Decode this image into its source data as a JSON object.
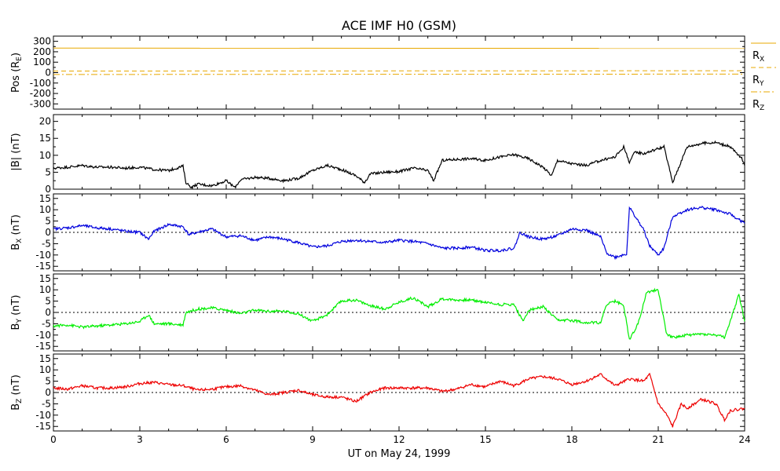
{
  "title": "ACE IMF H0 (GSM)",
  "xlabel": "UT on May 24, 1999",
  "x_ticks": [
    0,
    3,
    6,
    9,
    12,
    15,
    18,
    21,
    24
  ],
  "colors": {
    "pos": "#e8a800",
    "bmag": "#000000",
    "bx": "#0000dd",
    "by": "#00ee00",
    "bz": "#ee0000"
  },
  "chart_data": [
    {
      "type": "line",
      "panel": "pos",
      "ylabel": "Pos (R",
      "ylabel_sub": "E",
      "ylabel_end": ")",
      "ylim": [
        -350,
        350
      ],
      "y_ticks": [
        300,
        200,
        100,
        0,
        -100,
        -200,
        -300
      ],
      "grid": false,
      "legend_placement": "right",
      "series": [
        {
          "name": "R",
          "sub": "X",
          "dash": "solid",
          "x": [
            0,
            24
          ],
          "values": [
            235,
            232
          ]
        },
        {
          "name": "R",
          "sub": "Y",
          "dash": "dashed",
          "x": [
            0,
            24
          ],
          "values": [
            15,
            18
          ]
        },
        {
          "name": "R",
          "sub": "Z",
          "dash": "dashdot",
          "x": [
            0,
            24
          ],
          "values": [
            -18,
            -14
          ]
        }
      ]
    },
    {
      "type": "line",
      "panel": "bmag",
      "ylabel": "|B| (nT)",
      "ylim": [
        0,
        22
      ],
      "y_ticks": [
        20,
        15,
        10,
        5,
        0
      ],
      "zero_line": false,
      "x": [
        0,
        0.5,
        1,
        1.5,
        2,
        2.5,
        3,
        3.5,
        4,
        4.5,
        4.6,
        4.8,
        5,
        5.5,
        6,
        6.3,
        6.5,
        7,
        7.5,
        8,
        8.5,
        9,
        9.5,
        10,
        10.5,
        10.8,
        11,
        11.5,
        12,
        12.5,
        13,
        13.2,
        13.5,
        14,
        14.5,
        15,
        15.5,
        16,
        16.5,
        17,
        17.3,
        17.5,
        18,
        18.5,
        19,
        19.5,
        19.8,
        20,
        20.2,
        20.5,
        21,
        21.2,
        21.5,
        22,
        22.5,
        23,
        23.5,
        23.9,
        24
      ],
      "values": [
        6.2,
        6.5,
        7,
        6.5,
        6.5,
        6.2,
        6.5,
        5.8,
        5.5,
        6.8,
        2,
        0.5,
        1.5,
        1,
        2.5,
        0.5,
        2.8,
        3.5,
        3.2,
        2.5,
        3.2,
        5.5,
        7,
        5.8,
        4,
        2,
        4.5,
        5,
        5.2,
        6.2,
        5.5,
        2.5,
        8.5,
        8.8,
        9,
        8.5,
        9.5,
        10.2,
        9,
        6.5,
        4,
        8.5,
        7.5,
        7,
        8.5,
        9.5,
        12.5,
        8,
        11,
        10.5,
        12,
        12.5,
        2,
        12.5,
        13.5,
        13.8,
        12.5,
        9,
        7
      ]
    },
    {
      "type": "line",
      "panel": "bx",
      "ylabel": "B",
      "ylabel_sub": "X",
      "ylabel_end": " (nT)",
      "ylim": [
        -17,
        17
      ],
      "y_ticks": [
        15,
        10,
        5,
        0,
        -5,
        -10,
        -15
      ],
      "zero_line": true,
      "x": [
        0,
        0.5,
        1,
        1.5,
        2,
        2.5,
        3,
        3.3,
        3.5,
        4,
        4.5,
        4.7,
        5,
        5.5,
        6,
        6.5,
        7,
        7.5,
        8,
        8.5,
        9,
        9.5,
        10,
        10.5,
        11,
        11.5,
        12,
        12.5,
        13,
        13.5,
        14,
        14.5,
        15,
        15.5,
        16,
        16.2,
        16.5,
        17,
        17.5,
        18,
        18.5,
        19,
        19.2,
        19.5,
        19.9,
        20,
        20.5,
        20.7,
        21,
        21.2,
        21.5,
        22,
        22.5,
        23,
        23.5,
        24
      ],
      "values": [
        1.5,
        2,
        3,
        2,
        1.5,
        0.5,
        0,
        -3,
        0.5,
        3.5,
        2.5,
        -1,
        0,
        1.5,
        -2,
        -1.5,
        -3.5,
        -2,
        -3,
        -4.5,
        -6.5,
        -6,
        -4,
        -3.5,
        -4,
        -4.5,
        -3.5,
        -4,
        -5,
        -7,
        -7,
        -6.5,
        -8,
        -8,
        -7,
        0,
        -2,
        -3,
        -1.5,
        1.5,
        1,
        -2,
        -9,
        -11,
        -9.5,
        11,
        1,
        -6,
        -10,
        -7,
        7,
        10,
        11,
        10,
        8,
        4
      ]
    },
    {
      "type": "line",
      "panel": "by",
      "ylabel": "B",
      "ylabel_sub": "Y",
      "ylabel_end": " (nT)",
      "ylim": [
        -17,
        17
      ],
      "y_ticks": [
        15,
        10,
        5,
        0,
        -5,
        -10,
        -15
      ],
      "zero_line": true,
      "x": [
        0,
        0.5,
        1,
        1.5,
        2,
        2.5,
        3,
        3.3,
        3.5,
        4,
        4.5,
        4.6,
        5,
        5.5,
        6,
        6.5,
        7,
        7.5,
        8,
        8.5,
        9,
        9.5,
        10,
        10.5,
        11,
        11.5,
        12,
        12.5,
        13,
        13.5,
        14,
        14.5,
        15,
        15.5,
        16,
        16.3,
        16.5,
        17,
        17.5,
        18,
        18.5,
        19,
        19.2,
        19.5,
        19.8,
        20,
        20.3,
        20.6,
        21,
        21.3,
        21.6,
        22,
        22.5,
        23,
        23.3,
        23.5,
        23.8,
        24
      ],
      "values": [
        -6,
        -5.5,
        -6.5,
        -6,
        -5.5,
        -5,
        -4,
        -1,
        -5,
        -5,
        -5.5,
        0,
        1.5,
        2,
        1,
        -0.5,
        1,
        0.5,
        0.5,
        -0.5,
        -4,
        -1,
        5,
        5.5,
        3,
        1.5,
        4.5,
        6.5,
        2.5,
        6,
        5.5,
        5.5,
        4.5,
        3.5,
        3.5,
        -4,
        1,
        2.5,
        -3.5,
        -3.5,
        -4.5,
        -4.5,
        3.5,
        5,
        3,
        -12,
        -5,
        9,
        10,
        -10,
        -11,
        -10,
        -9.5,
        -10,
        -11,
        -4,
        8,
        -4
      ]
    },
    {
      "type": "line",
      "panel": "bz",
      "ylabel": "B",
      "ylabel_sub": "Z",
      "ylabel_end": " (nT)",
      "ylim": [
        -17,
        17
      ],
      "y_ticks": [
        15,
        10,
        5,
        0,
        -5,
        -10,
        -15
      ],
      "zero_line": true,
      "x": [
        0,
        0.5,
        1,
        1.5,
        2,
        2.5,
        3,
        3.5,
        4,
        4.5,
        5,
        5.5,
        6,
        6.5,
        7,
        7.5,
        8,
        8.5,
        9,
        9.5,
        10,
        10.5,
        11,
        11.5,
        12,
        12.5,
        13,
        13.5,
        14,
        14.5,
        15,
        15.5,
        16,
        16.5,
        17,
        17.5,
        18,
        18.5,
        19,
        19.5,
        20,
        20.5,
        20.7,
        21,
        21.3,
        21.5,
        21.8,
        22,
        22.5,
        23,
        23.3,
        23.5,
        24
      ],
      "values": [
        2,
        1.5,
        3,
        2,
        2,
        2.5,
        4,
        4.5,
        3.5,
        3,
        1,
        1.5,
        2.5,
        3,
        1,
        -1,
        0,
        1,
        -1,
        -2,
        -2,
        -4,
        0,
        2,
        2,
        2,
        2,
        0.5,
        1.5,
        3.5,
        2.5,
        5,
        3,
        6,
        7,
        6,
        3.5,
        5,
        8,
        3,
        6,
        5,
        8,
        -5,
        -10,
        -15,
        -5,
        -7,
        -3,
        -5,
        -12,
        -8,
        -7
      ]
    }
  ]
}
